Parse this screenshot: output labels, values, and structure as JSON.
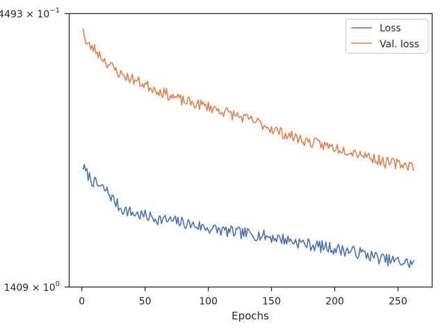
{
  "chart_data": {
    "type": "line",
    "title": "",
    "xlabel": "Epochs",
    "ylabel": "",
    "y_scale": "log",
    "xlim": [
      -10,
      277
    ],
    "x_ticks": [
      0,
      50,
      100,
      150,
      200,
      250
    ],
    "x_tick_labels": [
      "0",
      "50",
      "100",
      "150",
      "200",
      "250"
    ],
    "y_tick_labels": [
      "$4493 \\times 10^{-1}$",
      "$1409 \\times 10^{0}$"
    ],
    "y_tick_labels_display": {
      "top": {
        "mantissa": "4493 × 10",
        "exponent": "−1"
      },
      "bottom": {
        "mantissa": "1409 × 10",
        "exponent": "0"
      }
    },
    "ylim_frac": [
      0,
      1
    ],
    "legend": {
      "placement": "upper-right"
    },
    "grid": false,
    "series": [
      {
        "name": "Loss",
        "color": "#4c72b0",
        "x_start": 1,
        "x_end": 263,
        "anchor_x": [
          1,
          3,
          10,
          20,
          30,
          40,
          60,
          80,
          100,
          120,
          140,
          160,
          180,
          200,
          220,
          240,
          263
        ],
        "anchor_y": [
          0.44,
          0.42,
          0.38,
          0.35,
          0.29,
          0.27,
          0.25,
          0.235,
          0.215,
          0.2,
          0.19,
          0.175,
          0.155,
          0.14,
          0.125,
          0.1,
          0.085
        ],
        "noise_amp": 0.022,
        "seed": 7
      },
      {
        "name": "Val. loss",
        "color": "#dd8452",
        "x_start": 1,
        "x_end": 263,
        "anchor_x": [
          1,
          3,
          10,
          20,
          30,
          40,
          60,
          80,
          100,
          120,
          140,
          160,
          180,
          200,
          220,
          240,
          263
        ],
        "anchor_y": [
          0.955,
          0.89,
          0.87,
          0.82,
          0.78,
          0.76,
          0.72,
          0.68,
          0.66,
          0.63,
          0.6,
          0.56,
          0.53,
          0.51,
          0.49,
          0.455,
          0.445
        ],
        "noise_amp": 0.02,
        "seed": 23
      }
    ]
  }
}
